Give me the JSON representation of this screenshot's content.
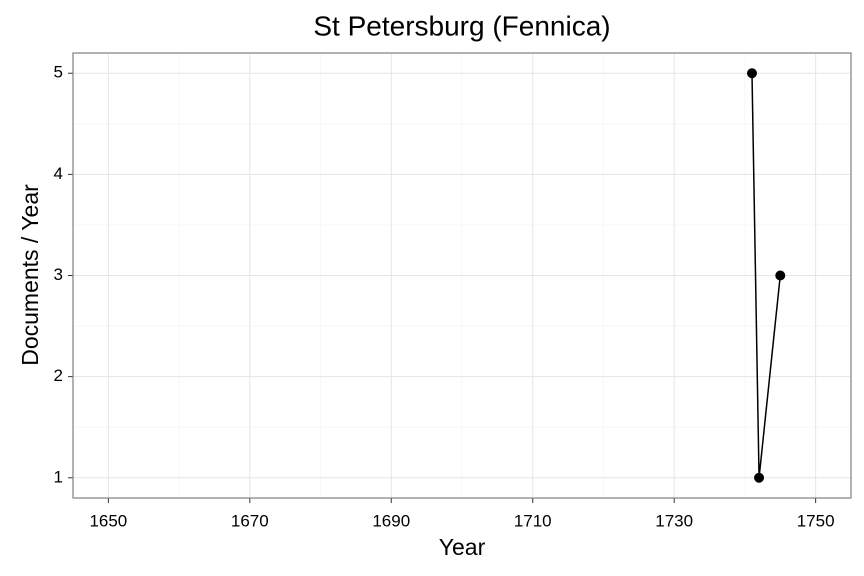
{
  "chart_data": {
    "type": "line",
    "title": "St Petersburg (Fennica)",
    "xlabel": "Year",
    "ylabel": "Documents / Year",
    "x": [
      1741,
      1742,
      1745
    ],
    "values": [
      5,
      1,
      3
    ],
    "color": "#000000",
    "xlim": [
      1645,
      1755
    ],
    "ylim": [
      0.8,
      5.2
    ],
    "xticks": [
      1650,
      1670,
      1690,
      1710,
      1730,
      1750
    ],
    "yticks": [
      1,
      2,
      3,
      4,
      5
    ],
    "xminor": [
      1660,
      1680,
      1700,
      1720,
      1740
    ],
    "yminor": [
      1.5,
      2.5,
      3.5,
      4.5
    ],
    "grid": true,
    "markers": true
  }
}
